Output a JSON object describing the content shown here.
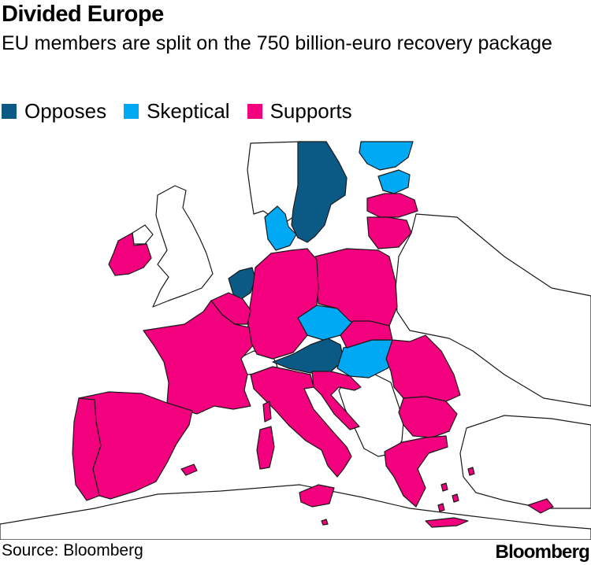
{
  "title": "Divided Europe",
  "subtitle": "EU members are split on the 750 billion-euro recovery package",
  "legend": [
    {
      "label": "Opposes",
      "color": "#0b5a85"
    },
    {
      "label": "Skeptical",
      "color": "#00a9f4"
    },
    {
      "label": "Supports",
      "color": "#f2007d"
    }
  ],
  "colors": {
    "opposes": "#0b5a85",
    "skeptical": "#00a9f4",
    "supports": "#f2007d",
    "non_member": "#ffffff"
  },
  "positions": {
    "Opposes": [
      "Sweden",
      "Netherlands",
      "Austria"
    ],
    "Skeptical": [
      "Finland",
      "Estonia",
      "Denmark",
      "Czech Republic",
      "Hungary"
    ],
    "Supports": [
      "Ireland",
      "Latvia",
      "Lithuania",
      "Poland",
      "Germany",
      "Belgium",
      "Luxembourg",
      "France",
      "Spain",
      "Portugal",
      "Italy",
      "Slovenia",
      "Croatia",
      "Slovakia",
      "Romania",
      "Bulgaria",
      "Greece",
      "Malta",
      "Cyprus"
    ]
  },
  "footer": {
    "source": "Source: Bloomberg",
    "brand": "Bloomberg"
  }
}
